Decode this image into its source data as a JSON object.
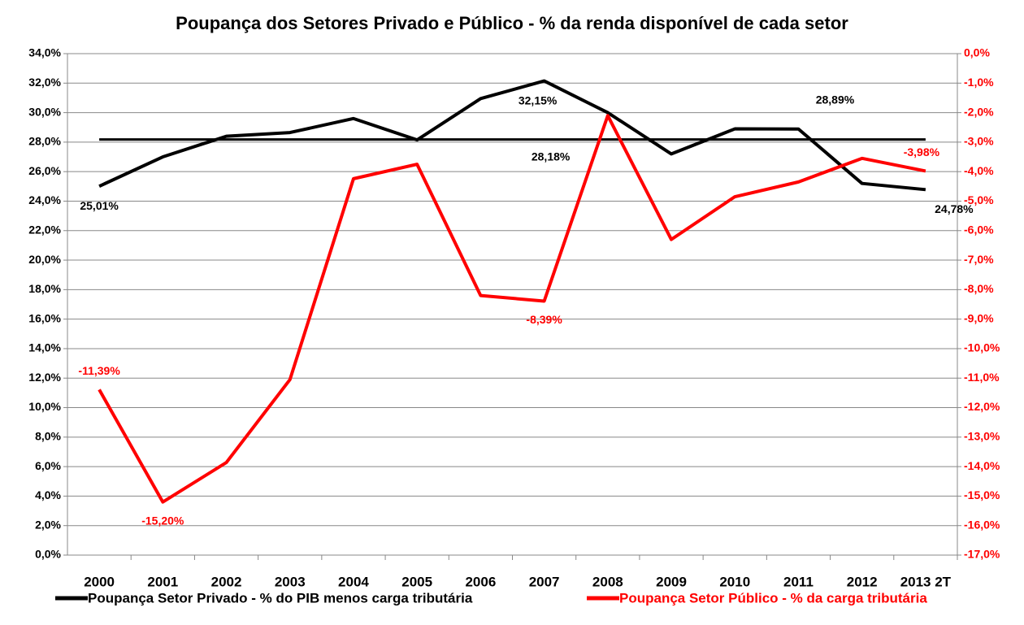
{
  "chart_data": {
    "type": "line",
    "title": "Poupança dos Setores Privado  e Público - % da renda disponível de cada setor",
    "categories": [
      "2000",
      "2001",
      "2002",
      "2003",
      "2004",
      "2005",
      "2006",
      "2007",
      "2008",
      "2009",
      "2010",
      "2011",
      "2012",
      "2013 2T"
    ],
    "series": [
      {
        "name": "Poupança Setor Privado - % do PIB menos carga tributária",
        "color": "#000000",
        "axis": "y",
        "values": [
          25.01,
          27.0,
          28.4,
          28.65,
          29.6,
          28.15,
          30.95,
          32.15,
          30.0,
          27.2,
          28.9,
          28.89,
          25.2,
          24.78
        ],
        "value_labels": [
          "25,01%",
          null,
          null,
          null,
          null,
          null,
          null,
          "32,15%",
          null,
          null,
          null,
          "28,89%",
          null,
          "24,78%"
        ]
      },
      {
        "name": "Poupança Setor Público - % da carga tributária",
        "color": "#ff0000",
        "axis": "y2",
        "values": [
          -11.39,
          -15.2,
          -13.86,
          -11.05,
          -4.24,
          -3.75,
          -8.2,
          -8.39,
          -2.1,
          -6.3,
          -4.85,
          -4.35,
          -3.55,
          -3.98
        ],
        "value_labels": [
          "-11,39%",
          "-15,20%",
          null,
          null,
          null,
          null,
          null,
          "-8,39%",
          null,
          null,
          null,
          null,
          null,
          "-3,98%"
        ]
      }
    ],
    "reference_line": {
      "value": 28.18,
      "label": "28,18%",
      "color": "#000000",
      "axis": "y"
    },
    "ylim": [
      0,
      34
    ],
    "yticks": [
      {
        "value": 0,
        "label": "0,0%"
      },
      {
        "value": 2,
        "label": "2,0%"
      },
      {
        "value": 4,
        "label": "4,0%"
      },
      {
        "value": 6,
        "label": "6,0%"
      },
      {
        "value": 8,
        "label": "8,0%"
      },
      {
        "value": 10,
        "label": "10,0%"
      },
      {
        "value": 12,
        "label": "12,0%"
      },
      {
        "value": 14,
        "label": "14,0%"
      },
      {
        "value": 16,
        "label": "16,0%"
      },
      {
        "value": 18,
        "label": "18,0%"
      },
      {
        "value": 20,
        "label": "20,0%"
      },
      {
        "value": 22,
        "label": "22,0%"
      },
      {
        "value": 24,
        "label": "24,0%"
      },
      {
        "value": 26,
        "label": "26,0%"
      },
      {
        "value": 28,
        "label": "28,0%"
      },
      {
        "value": 30,
        "label": "30,0%"
      },
      {
        "value": 32,
        "label": "32,0%"
      },
      {
        "value": 34,
        "label": "34,0%"
      }
    ],
    "y2lim": [
      -17,
      0
    ],
    "y2ticks": [
      {
        "value": 0,
        "label": "0,0%"
      },
      {
        "value": -1,
        "label": "-1,0%"
      },
      {
        "value": -2,
        "label": "-2,0%"
      },
      {
        "value": -3,
        "label": "-3,0%"
      },
      {
        "value": -4,
        "label": "-4,0%"
      },
      {
        "value": -5,
        "label": "-5,0%"
      },
      {
        "value": -6,
        "label": "-6,0%"
      },
      {
        "value": -7,
        "label": "-7,0%"
      },
      {
        "value": -8,
        "label": "-8,0%"
      },
      {
        "value": -9,
        "label": "-9,0%"
      },
      {
        "value": -10,
        "label": "-10,0%"
      },
      {
        "value": -11,
        "label": "-11,0%"
      },
      {
        "value": -12,
        "label": "-12,0%"
      },
      {
        "value": -13,
        "label": "-13,0%"
      },
      {
        "value": -14,
        "label": "-14,0%"
      },
      {
        "value": -15,
        "label": "-15,0%"
      },
      {
        "value": -16,
        "label": "-16,0%"
      },
      {
        "value": -17,
        "label": "-17,0%"
      }
    ],
    "y2_color": "#ff0000",
    "grid": true,
    "legend": "bottom"
  }
}
